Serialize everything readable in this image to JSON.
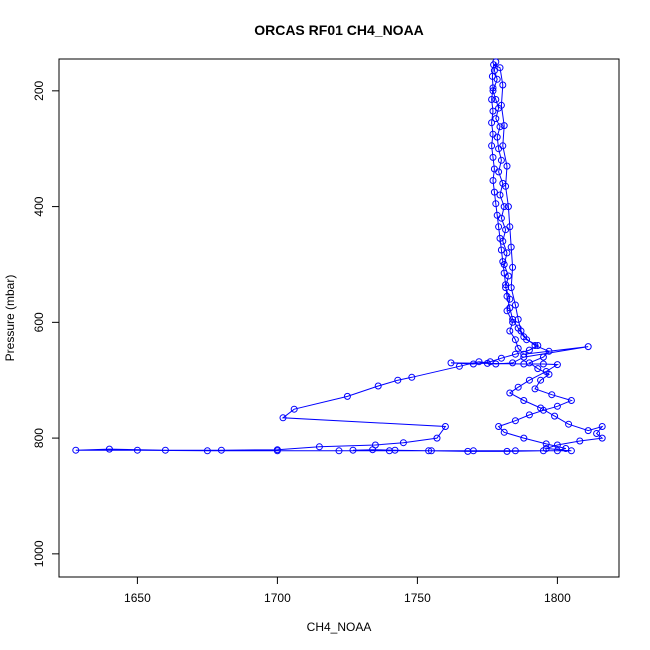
{
  "chart_data": {
    "type": "line",
    "title": "ORCAS RF01 CH4_NOAA",
    "xlabel": "CH4_NOAA",
    "ylabel": "Pressure (mbar)",
    "xlim": [
      1622,
      1822
    ],
    "ylim": [
      1040,
      145
    ],
    "y_reversed": true,
    "xticks": [
      1650,
      1700,
      1750,
      1800
    ],
    "yticks": [
      200,
      400,
      600,
      800,
      1000
    ],
    "grid": false,
    "marker": "open-circle",
    "color": "#0000ff",
    "series": [
      {
        "points": [
          [
            1778.0,
            150
          ],
          [
            1777.5,
            165
          ],
          [
            1778.5,
            180
          ],
          [
            1777.0,
            200
          ],
          [
            1778.0,
            215
          ],
          [
            1779.0,
            230
          ],
          [
            1778.0,
            248
          ],
          [
            1779.5,
            262
          ],
          [
            1778.5,
            280
          ],
          [
            1779.0,
            300
          ],
          [
            1780.0,
            320
          ],
          [
            1779.0,
            340
          ],
          [
            1780.5,
            360
          ],
          [
            1779.5,
            380
          ],
          [
            1781.0,
            400
          ],
          [
            1780.0,
            420
          ],
          [
            1781.5,
            440
          ],
          [
            1780.5,
            460
          ],
          [
            1782.0,
            480
          ],
          [
            1781.0,
            500
          ],
          [
            1782.5,
            520
          ],
          [
            1781.5,
            540
          ],
          [
            1783.0,
            560
          ],
          [
            1782.0,
            580
          ],
          [
            1784.0,
            600
          ],
          [
            1783.0,
            615
          ],
          [
            1785.0,
            630
          ],
          [
            1786.0,
            645
          ],
          [
            1788.0,
            655
          ],
          [
            1811.0,
            642
          ],
          [
            1788.0,
            660
          ],
          [
            1784.0,
            670
          ],
          [
            1778.0,
            672
          ],
          [
            1772.0,
            668
          ],
          [
            1765.0,
            676
          ],
          [
            1748.0,
            695
          ],
          [
            1743.0,
            700
          ],
          [
            1736.0,
            710
          ],
          [
            1725.0,
            728
          ],
          [
            1706.0,
            750
          ],
          [
            1702.0,
            765
          ],
          [
            1760.0,
            780
          ],
          [
            1757.0,
            800
          ],
          [
            1745.0,
            808
          ],
          [
            1735.0,
            812
          ],
          [
            1715.0,
            815
          ],
          [
            1700.0,
            820
          ],
          [
            1680.0,
            821
          ],
          [
            1660.0,
            821
          ],
          [
            1640.0,
            819
          ],
          [
            1628.0,
            821
          ],
          [
            1650.0,
            821
          ],
          [
            1675.0,
            822
          ],
          [
            1700.0,
            822
          ],
          [
            1722.0,
            822
          ],
          [
            1740.0,
            822
          ],
          [
            1755.0,
            822
          ],
          [
            1770.0,
            822
          ],
          [
            1785.0,
            822
          ],
          [
            1800.0,
            822
          ],
          [
            1803.0,
            818
          ],
          [
            1796.0,
            810
          ],
          [
            1788.0,
            800
          ],
          [
            1781.0,
            790
          ],
          [
            1779.0,
            780
          ],
          [
            1785.0,
            770
          ],
          [
            1790.0,
            760
          ],
          [
            1795.0,
            752
          ],
          [
            1800.0,
            745
          ],
          [
            1805.0,
            735
          ],
          [
            1798.0,
            725
          ],
          [
            1792.0,
            715
          ],
          [
            1794.0,
            700
          ],
          [
            1797.0,
            690
          ],
          [
            1793.0,
            680
          ],
          [
            1790.0,
            670
          ],
          [
            1795.0,
            660
          ],
          [
            1797.0,
            650
          ],
          [
            1792.0,
            640
          ],
          [
            1788.0,
            625
          ],
          [
            1786.0,
            610
          ],
          [
            1784.0,
            595
          ],
          [
            1783.0,
            575
          ],
          [
            1782.0,
            555
          ],
          [
            1781.5,
            535
          ],
          [
            1781.0,
            515
          ],
          [
            1780.5,
            495
          ],
          [
            1780.0,
            475
          ],
          [
            1779.5,
            455
          ],
          [
            1779.0,
            435
          ],
          [
            1778.5,
            415
          ],
          [
            1778.0,
            395
          ],
          [
            1777.5,
            375
          ],
          [
            1777.0,
            355
          ],
          [
            1777.5,
            335
          ],
          [
            1777.0,
            315
          ],
          [
            1776.5,
            295
          ],
          [
            1777.0,
            275
          ],
          [
            1776.5,
            255
          ],
          [
            1777.0,
            235
          ],
          [
            1776.5,
            215
          ],
          [
            1777.0,
            195
          ],
          [
            1776.8,
            175
          ],
          [
            1777.2,
            155
          ],
          [
            1779.5,
            160
          ],
          [
            1780.5,
            190
          ],
          [
            1780.0,
            225
          ],
          [
            1781.0,
            260
          ],
          [
            1780.5,
            295
          ],
          [
            1782.0,
            330
          ],
          [
            1781.5,
            365
          ],
          [
            1782.5,
            400
          ],
          [
            1783.0,
            435
          ],
          [
            1783.5,
            470
          ],
          [
            1784.0,
            505
          ],
          [
            1783.5,
            540
          ],
          [
            1785.0,
            570
          ],
          [
            1786.0,
            595
          ],
          [
            1787.0,
            615
          ],
          [
            1789.0,
            630
          ],
          [
            1793.0,
            640
          ],
          [
            1790.0,
            648
          ],
          [
            1785.0,
            655
          ],
          [
            1780.0,
            662
          ],
          [
            1776.0,
            668
          ],
          [
            1770.0,
            672
          ],
          [
            1762.0,
            670
          ],
          [
            1775.0,
            671
          ],
          [
            1788.0,
            672
          ],
          [
            1795.0,
            672
          ],
          [
            1800.0,
            673
          ],
          [
            1796.0,
            685
          ],
          [
            1790.0,
            700
          ],
          [
            1786.0,
            712
          ],
          [
            1783.0,
            722
          ],
          [
            1788.0,
            735
          ],
          [
            1794.0,
            748
          ],
          [
            1799.0,
            762
          ],
          [
            1804.0,
            776
          ],
          [
            1811.0,
            787
          ],
          [
            1816.0,
            780
          ],
          [
            1814.0,
            792
          ],
          [
            1816.0,
            800
          ],
          [
            1808.0,
            805
          ],
          [
            1800.0,
            812
          ],
          [
            1796.0,
            818
          ],
          [
            1805.0,
            822
          ],
          [
            1795.0,
            822
          ],
          [
            1782.0,
            823
          ],
          [
            1768.0,
            823
          ],
          [
            1754.0,
            822
          ],
          [
            1742.0,
            821
          ],
          [
            1734.0,
            820
          ],
          [
            1727.0,
            821
          ]
        ]
      }
    ]
  }
}
